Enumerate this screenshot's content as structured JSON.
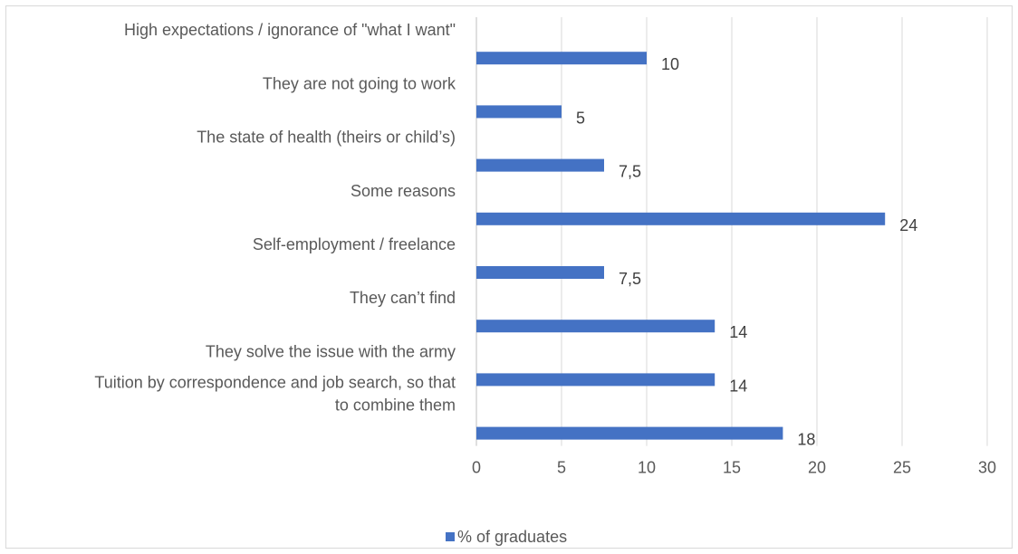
{
  "chart_data": {
    "type": "bar",
    "orientation": "horizontal",
    "categories": [
      "High expectations / ignorance of \"what I want\"",
      "They are not going to work",
      "The state of health (theirs or child’s)",
      "Some reasons",
      "Self-employment / freelance",
      "They can’t find",
      "They solve the issue with the army",
      "Tuition by correspondence and job search, so that to combine them"
    ],
    "category_lines": [
      [
        "High expectations / ignorance of \"what I want\""
      ],
      [
        "They are not going to work"
      ],
      [
        "The state of health (theirs or child’s)"
      ],
      [
        "Some reasons"
      ],
      [
        "Self-employment / freelance"
      ],
      [
        "They can’t find"
      ],
      [
        "They solve the issue with the army"
      ],
      [
        "Tuition by correspondence and job search, so that",
        "to combine them"
      ]
    ],
    "series": [
      {
        "name": "% of graduates",
        "values": [
          10,
          5,
          7.5,
          24,
          7.5,
          14,
          14,
          18
        ],
        "data_labels": [
          "10",
          "5",
          "7,5",
          "24",
          "7,5",
          "14",
          "14",
          "18"
        ],
        "color": "#4472c4"
      }
    ],
    "xlim": [
      0,
      30
    ],
    "xticks": [
      0,
      5,
      10,
      15,
      20,
      25,
      30
    ],
    "grid": true,
    "legend_position": "bottom",
    "title": "",
    "xlabel": "",
    "ylabel": ""
  }
}
